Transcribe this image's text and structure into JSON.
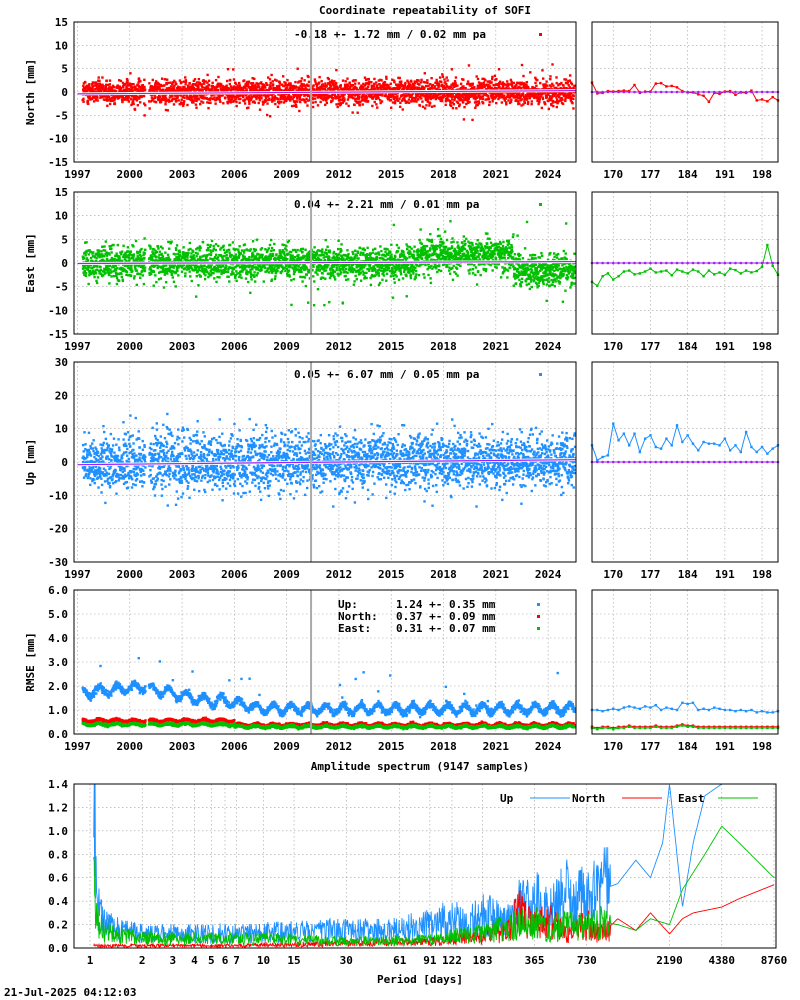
{
  "title": "Coordinate repeatability of SOFI",
  "timestamp": "21-Jul-2025 04:12:03",
  "colors": {
    "north": "#ff0000",
    "east": "#00c000",
    "up": "#1e90ff",
    "trend": "#a020f0",
    "marker": "#aaaaaa",
    "grid": "#a0a0a0"
  },
  "chart_data": [
    {
      "id": "north",
      "type": "scatter",
      "ylabel": "North [mm]",
      "annotation": "-0.18 +- 1.72 mm /  0.02 mm pa",
      "ylim": [
        -15,
        15
      ],
      "yticks": [
        -15,
        -10,
        -5,
        0,
        5,
        10,
        15
      ],
      "ytick_labels": [
        "-15",
        "-10",
        "-5",
        "0",
        "5",
        "10",
        "15"
      ],
      "xlim": [
        1996.8,
        2025.6
      ],
      "xticks": [
        1997,
        2000,
        2003,
        2006,
        2009,
        2012,
        2015,
        2018,
        2021,
        2024
      ],
      "marker_year": 2010.4,
      "spread": 2.2,
      "outlier_spread": 6,
      "trend": [
        [
          1997.0,
          -0.4
        ],
        [
          2025.6,
          0.3
        ]
      ],
      "gap": [
        2000.9,
        2001.1
      ],
      "zoom": {
        "xlim": [
          166,
          201
        ],
        "xticks": [
          170,
          177,
          184,
          191,
          198
        ],
        "x": [
          166,
          167,
          168,
          169,
          170,
          171,
          172,
          173,
          174,
          175,
          176,
          177,
          178,
          179,
          180,
          181,
          182,
          183,
          184,
          185,
          186,
          187,
          188,
          189,
          190,
          191,
          192,
          193,
          194,
          195,
          196,
          197,
          198,
          199,
          200,
          201
        ],
        "y": [
          2.0,
          -0.3,
          -0.2,
          0.2,
          0.1,
          0.2,
          0.3,
          0.2,
          1.5,
          -0.2,
          0.1,
          0.1,
          1.8,
          1.9,
          1.2,
          1.3,
          1.0,
          0.2,
          -0.1,
          -0.1,
          -0.5,
          -0.8,
          -2.1,
          -0.2,
          -0.4,
          0.1,
          0.2,
          -0.6,
          -0.1,
          -0.2,
          0.3,
          -1.8,
          -1.6,
          -2.0,
          -1.1,
          -1.8
        ]
      }
    },
    {
      "id": "east",
      "type": "scatter",
      "ylabel": "East [mm]",
      "annotation": "0.04 +- 2.21 mm /  0.01 mm pa",
      "ylim": [
        -15,
        15
      ],
      "yticks": [
        -15,
        -10,
        -5,
        0,
        5,
        10,
        15
      ],
      "ytick_labels": [
        "-15",
        "-10",
        "-5",
        "0",
        "5",
        "10",
        "15"
      ],
      "xlim": [
        1996.8,
        2025.6
      ],
      "xticks": [
        1997,
        2000,
        2003,
        2006,
        2009,
        2012,
        2015,
        2018,
        2021,
        2024
      ],
      "marker_year": 2010.4,
      "spread": 2.8,
      "outlier_spread": 9,
      "trend": [
        [
          1997.0,
          -0.1
        ],
        [
          2025.6,
          0.3
        ]
      ],
      "gap": [
        2000.9,
        2001.1
      ],
      "zoom": {
        "xlim": [
          166,
          201
        ],
        "xticks": [
          170,
          177,
          184,
          191,
          198
        ],
        "x": [
          166,
          167,
          168,
          169,
          170,
          171,
          172,
          173,
          174,
          175,
          176,
          177,
          178,
          179,
          180,
          181,
          182,
          183,
          184,
          185,
          186,
          187,
          188,
          189,
          190,
          191,
          192,
          193,
          194,
          195,
          196,
          197,
          198,
          199,
          200,
          201
        ],
        "y": [
          -4.0,
          -4.8,
          -2.8,
          -2.2,
          -3.5,
          -2.8,
          -1.8,
          -1.6,
          -2.4,
          -2.2,
          -1.8,
          -1.2,
          -2.0,
          -1.8,
          -1.6,
          -2.6,
          -1.4,
          -1.8,
          -2.2,
          -1.4,
          -1.8,
          -2.8,
          -1.6,
          -2.4,
          -2.0,
          -2.5,
          -1.2,
          -1.5,
          -2.2,
          -1.6,
          -2.0,
          -1.7,
          -0.8,
          3.8,
          -0.6,
          -2.5
        ]
      }
    },
    {
      "id": "up",
      "type": "scatter",
      "ylabel": "Up [mm]",
      "annotation": "0.05 +- 6.07 mm /  0.05 mm pa",
      "ylim": [
        -30,
        30
      ],
      "yticks": [
        -30,
        -20,
        -10,
        0,
        10,
        20,
        30
      ],
      "ytick_labels": [
        "-30",
        "-20",
        "-10",
        "0",
        "10",
        "20",
        "30"
      ],
      "xlim": [
        1996.8,
        2025.6
      ],
      "xticks": [
        1997,
        2000,
        2003,
        2006,
        2009,
        2012,
        2015,
        2018,
        2021,
        2024
      ],
      "marker_year": 2010.4,
      "spread": 6.5,
      "outlier_spread": 14,
      "trend": [
        [
          1997.0,
          -0.8
        ],
        [
          2025.6,
          0.7
        ]
      ],
      "gap": [
        2000.9,
        2001.1
      ],
      "zoom": {
        "xlim": [
          166,
          201
        ],
        "xticks": [
          170,
          177,
          184,
          191,
          198
        ],
        "x": [
          166,
          167,
          168,
          169,
          170,
          171,
          172,
          173,
          174,
          175,
          176,
          177,
          178,
          179,
          180,
          181,
          182,
          183,
          184,
          185,
          186,
          187,
          188,
          189,
          190,
          191,
          192,
          193,
          194,
          195,
          196,
          197,
          198,
          199,
          200,
          201
        ],
        "y": [
          5.0,
          0.5,
          1.5,
          2.0,
          11.5,
          6.5,
          8.5,
          5.0,
          8.5,
          3.0,
          7.0,
          8.0,
          4.5,
          4.0,
          7.0,
          5.0,
          11.0,
          6.0,
          8.0,
          5.5,
          3.5,
          6.0,
          5.5,
          5.5,
          5.0,
          7.0,
          3.5,
          5.0,
          3.0,
          9.0,
          4.5,
          3.0,
          4.5,
          2.5,
          4.0,
          5.0
        ]
      }
    },
    {
      "id": "rmse",
      "type": "scatter",
      "ylabel": "RMSE [mm]",
      "ylim": [
        0,
        6
      ],
      "yticks": [
        0,
        1,
        2,
        3,
        4,
        5,
        6
      ],
      "ytick_labels": [
        "0.0",
        "1.0",
        "2.0",
        "3.0",
        "4.0",
        "5.0",
        "6.0"
      ],
      "xlim": [
        1996.8,
        2025.6
      ],
      "xticks": [
        1997,
        2000,
        2003,
        2006,
        2009,
        2012,
        2015,
        2018,
        2021,
        2024
      ],
      "marker_year": 2010.4,
      "legend": [
        {
          "label": "Up:",
          "value": "1.24 +- 0.35 mm",
          "color": "#1e90ff"
        },
        {
          "label": "North:",
          "value": "0.37 +- 0.09 mm",
          "color": "#ff0000"
        },
        {
          "label": "East:",
          "value": "0.31 +- 0.07 mm",
          "color": "#00c000"
        }
      ],
      "series": [
        {
          "name": "Up",
          "mean": 1.24,
          "color": "#1e90ff",
          "zoom_y": [
            1.0,
            1.0,
            0.95,
            1.0,
            1.05,
            1.0,
            1.1,
            1.15,
            1.1,
            1.05,
            1.15,
            1.1,
            1.2,
            1.0,
            1.1,
            1.05,
            1.0,
            1.3,
            1.25,
            1.3,
            1.0,
            1.05,
            1.0,
            1.1,
            1.05,
            1.0,
            1.0,
            0.95,
            1.0,
            0.95,
            1.0,
            0.9,
            0.95,
            0.9,
            0.9,
            0.95
          ]
        },
        {
          "name": "North",
          "mean": 0.37,
          "color": "#ff0000",
          "zoom_y": [
            0.3,
            0.25,
            0.3,
            0.3,
            0.25,
            0.3,
            0.3,
            0.35,
            0.3,
            0.3,
            0.3,
            0.3,
            0.35,
            0.3,
            0.3,
            0.3,
            0.35,
            0.4,
            0.35,
            0.35,
            0.3,
            0.3,
            0.3,
            0.3,
            0.3,
            0.3,
            0.3,
            0.3,
            0.3,
            0.3,
            0.3,
            0.3,
            0.3,
            0.3,
            0.3,
            0.3
          ]
        },
        {
          "name": "East",
          "mean": 0.31,
          "color": "#00c000",
          "zoom_y": [
            0.25,
            0.2,
            0.25,
            0.25,
            0.2,
            0.25,
            0.25,
            0.3,
            0.25,
            0.25,
            0.25,
            0.25,
            0.3,
            0.25,
            0.25,
            0.25,
            0.3,
            0.35,
            0.3,
            0.3,
            0.25,
            0.25,
            0.25,
            0.25,
            0.25,
            0.25,
            0.25,
            0.25,
            0.25,
            0.25,
            0.25,
            0.25,
            0.25,
            0.25,
            0.25,
            0.25
          ]
        }
      ],
      "zoom": {
        "xlim": [
          166,
          201
        ],
        "xticks": [
          170,
          177,
          184,
          191,
          198
        ],
        "x": [
          166,
          167,
          168,
          169,
          170,
          171,
          172,
          173,
          174,
          175,
          176,
          177,
          178,
          179,
          180,
          181,
          182,
          183,
          184,
          185,
          186,
          187,
          188,
          189,
          190,
          191,
          192,
          193,
          194,
          195,
          196,
          197,
          198,
          199,
          200,
          201
        ]
      }
    },
    {
      "id": "spectrum",
      "type": "line",
      "title": "Amplitude spectrum (9147 samples)",
      "xlabel": "Period [days]",
      "xscale": "log",
      "xlim": [
        1,
        8760
      ],
      "ylim": [
        0,
        1.4
      ],
      "xticks": [
        1,
        2,
        3,
        4,
        5,
        6,
        7,
        10,
        15,
        30,
        61,
        91,
        122,
        183,
        365,
        730,
        2190,
        4380,
        8760
      ],
      "xtick_labels": [
        "1",
        "2",
        "3",
        "4",
        "5",
        "6",
        "7",
        "10",
        "15",
        "30",
        "61",
        "91",
        "122",
        "183",
        "365",
        "730",
        "2190",
        "4380",
        "8760"
      ],
      "yticks": [
        0,
        0.2,
        0.4,
        0.6,
        0.8,
        1.0,
        1.2,
        1.4
      ],
      "ytick_labels": [
        "0.0",
        "0.2",
        "0.4",
        "0.6",
        "0.8",
        "1.0",
        "1.2",
        "1.4"
      ],
      "series": [
        {
          "name": "Up",
          "color": "#1e90ff",
          "x": [
            1.05,
            1.1,
            1.2,
            1.5,
            2,
            3,
            5,
            7,
            10,
            15,
            30,
            50,
            91,
            122,
            150,
            183,
            250,
            300,
            365,
            450,
            550,
            730,
            900,
            1100,
            1400,
            1700,
            2000,
            2190,
            2600,
            3000,
            3500,
            4380,
            5500,
            8760
          ],
          "y": [
            1.4,
            0.35,
            0.2,
            0.15,
            0.12,
            0.12,
            0.12,
            0.13,
            0.13,
            0.14,
            0.15,
            0.15,
            0.2,
            0.25,
            0.2,
            0.28,
            0.25,
            0.35,
            0.4,
            0.3,
            0.45,
            0.4,
            0.5,
            0.55,
            0.75,
            0.6,
            0.9,
            1.4,
            0.35,
            0.9,
            1.3,
            1.4,
            1.4,
            1.4
          ]
        },
        {
          "name": "North",
          "color": "#ff0000",
          "x": [
            1.05,
            1.5,
            3,
            7,
            15,
            30,
            61,
            91,
            122,
            183,
            250,
            300,
            365,
            450,
            550,
            730,
            900,
            1100,
            1400,
            1700,
            2190,
            2600,
            3000,
            4380,
            5500,
            8760
          ],
          "y": [
            0.02,
            0.02,
            0.02,
            0.02,
            0.03,
            0.04,
            0.05,
            0.05,
            0.07,
            0.1,
            0.15,
            0.3,
            0.2,
            0.25,
            0.12,
            0.2,
            0.12,
            0.25,
            0.15,
            0.3,
            0.12,
            0.25,
            0.3,
            0.35,
            0.42,
            0.54
          ]
        },
        {
          "name": "East",
          "color": "#00c000",
          "x": [
            1.05,
            1.1,
            1.2,
            1.5,
            2,
            3,
            5,
            7,
            10,
            15,
            30,
            61,
            91,
            122,
            183,
            250,
            300,
            365,
            450,
            550,
            730,
            900,
            1100,
            1400,
            1700,
            2190,
            2600,
            3500,
            4380,
            5500,
            8760
          ],
          "y": [
            0.5,
            0.25,
            0.15,
            0.1,
            0.09,
            0.08,
            0.08,
            0.08,
            0.08,
            0.07,
            0.06,
            0.06,
            0.07,
            0.1,
            0.12,
            0.18,
            0.2,
            0.22,
            0.15,
            0.2,
            0.18,
            0.22,
            0.2,
            0.15,
            0.25,
            0.2,
            0.5,
            0.8,
            1.04,
            0.9,
            0.6
          ]
        }
      ]
    }
  ]
}
